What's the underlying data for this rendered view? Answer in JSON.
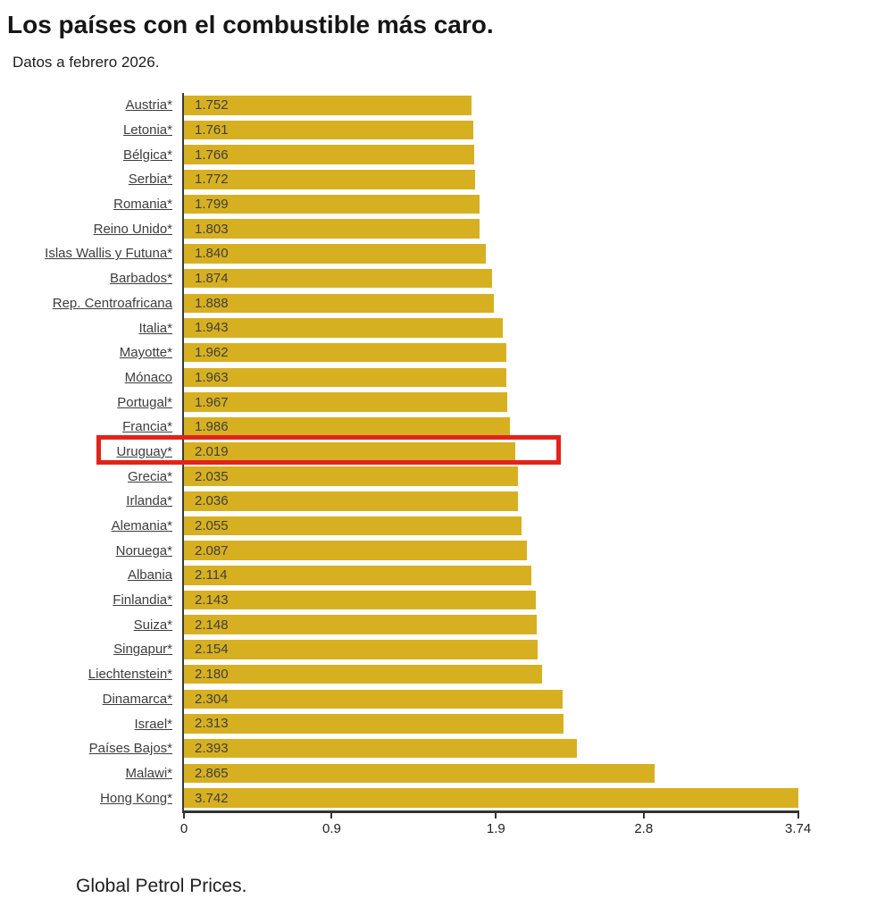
{
  "header": {
    "title": "Los países con el combustible más caro.",
    "subtitle": "Datos a febrero 2026."
  },
  "footer": {
    "source": "Global Petrol Prices."
  },
  "chart_data": {
    "type": "bar",
    "orientation": "horizontal",
    "title": "Los países con el combustible más caro.",
    "subtitle": "Datos a febrero 2026.",
    "source": "Global Petrol Prices.",
    "bar_color": "#d7b021",
    "highlight_color": "#e2231a",
    "highlight_category": "Uruguay*",
    "xlim": [
      0,
      3.742
    ],
    "x_ticks": [
      {
        "value": 0,
        "label": "0"
      },
      {
        "value": 0.9,
        "label": "0.9"
      },
      {
        "value": 1.9,
        "label": "1.9"
      },
      {
        "value": 2.8,
        "label": "2.8"
      },
      {
        "value": 3.74,
        "label": "3.74"
      }
    ],
    "rows": [
      {
        "label": "Austria*",
        "value": 1.752,
        "display": "1.752"
      },
      {
        "label": "Letonia*",
        "value": 1.761,
        "display": "1.761"
      },
      {
        "label": "Bélgica*",
        "value": 1.766,
        "display": "1.766"
      },
      {
        "label": "Serbia*",
        "value": 1.772,
        "display": "1.772"
      },
      {
        "label": "Romania*",
        "value": 1.799,
        "display": "1.799"
      },
      {
        "label": "Reino Unido*",
        "value": 1.803,
        "display": "1.803"
      },
      {
        "label": "Islas Wallis y Futuna*",
        "value": 1.84,
        "display": "1.840"
      },
      {
        "label": "Barbados*",
        "value": 1.874,
        "display": "1.874"
      },
      {
        "label": "Rep. Centroafricana",
        "value": 1.888,
        "display": "1.888"
      },
      {
        "label": "Italia*",
        "value": 1.943,
        "display": "1.943"
      },
      {
        "label": "Mayotte*",
        "value": 1.962,
        "display": "1.962"
      },
      {
        "label": "Mónaco",
        "value": 1.963,
        "display": "1.963"
      },
      {
        "label": "Portugal*",
        "value": 1.967,
        "display": "1.967"
      },
      {
        "label": "Francia*",
        "value": 1.986,
        "display": "1.986"
      },
      {
        "label": "Uruguay*",
        "value": 2.019,
        "display": "2.019"
      },
      {
        "label": "Grecia*",
        "value": 2.035,
        "display": "2.035"
      },
      {
        "label": "Irlanda*",
        "value": 2.036,
        "display": "2.036"
      },
      {
        "label": "Alemania*",
        "value": 2.055,
        "display": "2.055"
      },
      {
        "label": "Noruega*",
        "value": 2.087,
        "display": "2.087"
      },
      {
        "label": "Albania",
        "value": 2.114,
        "display": "2.114"
      },
      {
        "label": "Finlandia*",
        "value": 2.143,
        "display": "2.143"
      },
      {
        "label": "Suiza*",
        "value": 2.148,
        "display": "2.148"
      },
      {
        "label": "Singapur*",
        "value": 2.154,
        "display": "2.154"
      },
      {
        "label": "Liechtenstein*",
        "value": 2.18,
        "display": "2.180"
      },
      {
        "label": "Dinamarca*",
        "value": 2.304,
        "display": "2.304"
      },
      {
        "label": "Israel*",
        "value": 2.313,
        "display": "2.313"
      },
      {
        "label": "Países Bajos*",
        "value": 2.393,
        "display": "2.393"
      },
      {
        "label": "Malawi*",
        "value": 2.865,
        "display": "2.865"
      },
      {
        "label": "Hong Kong*",
        "value": 3.742,
        "display": "3.742"
      }
    ]
  }
}
